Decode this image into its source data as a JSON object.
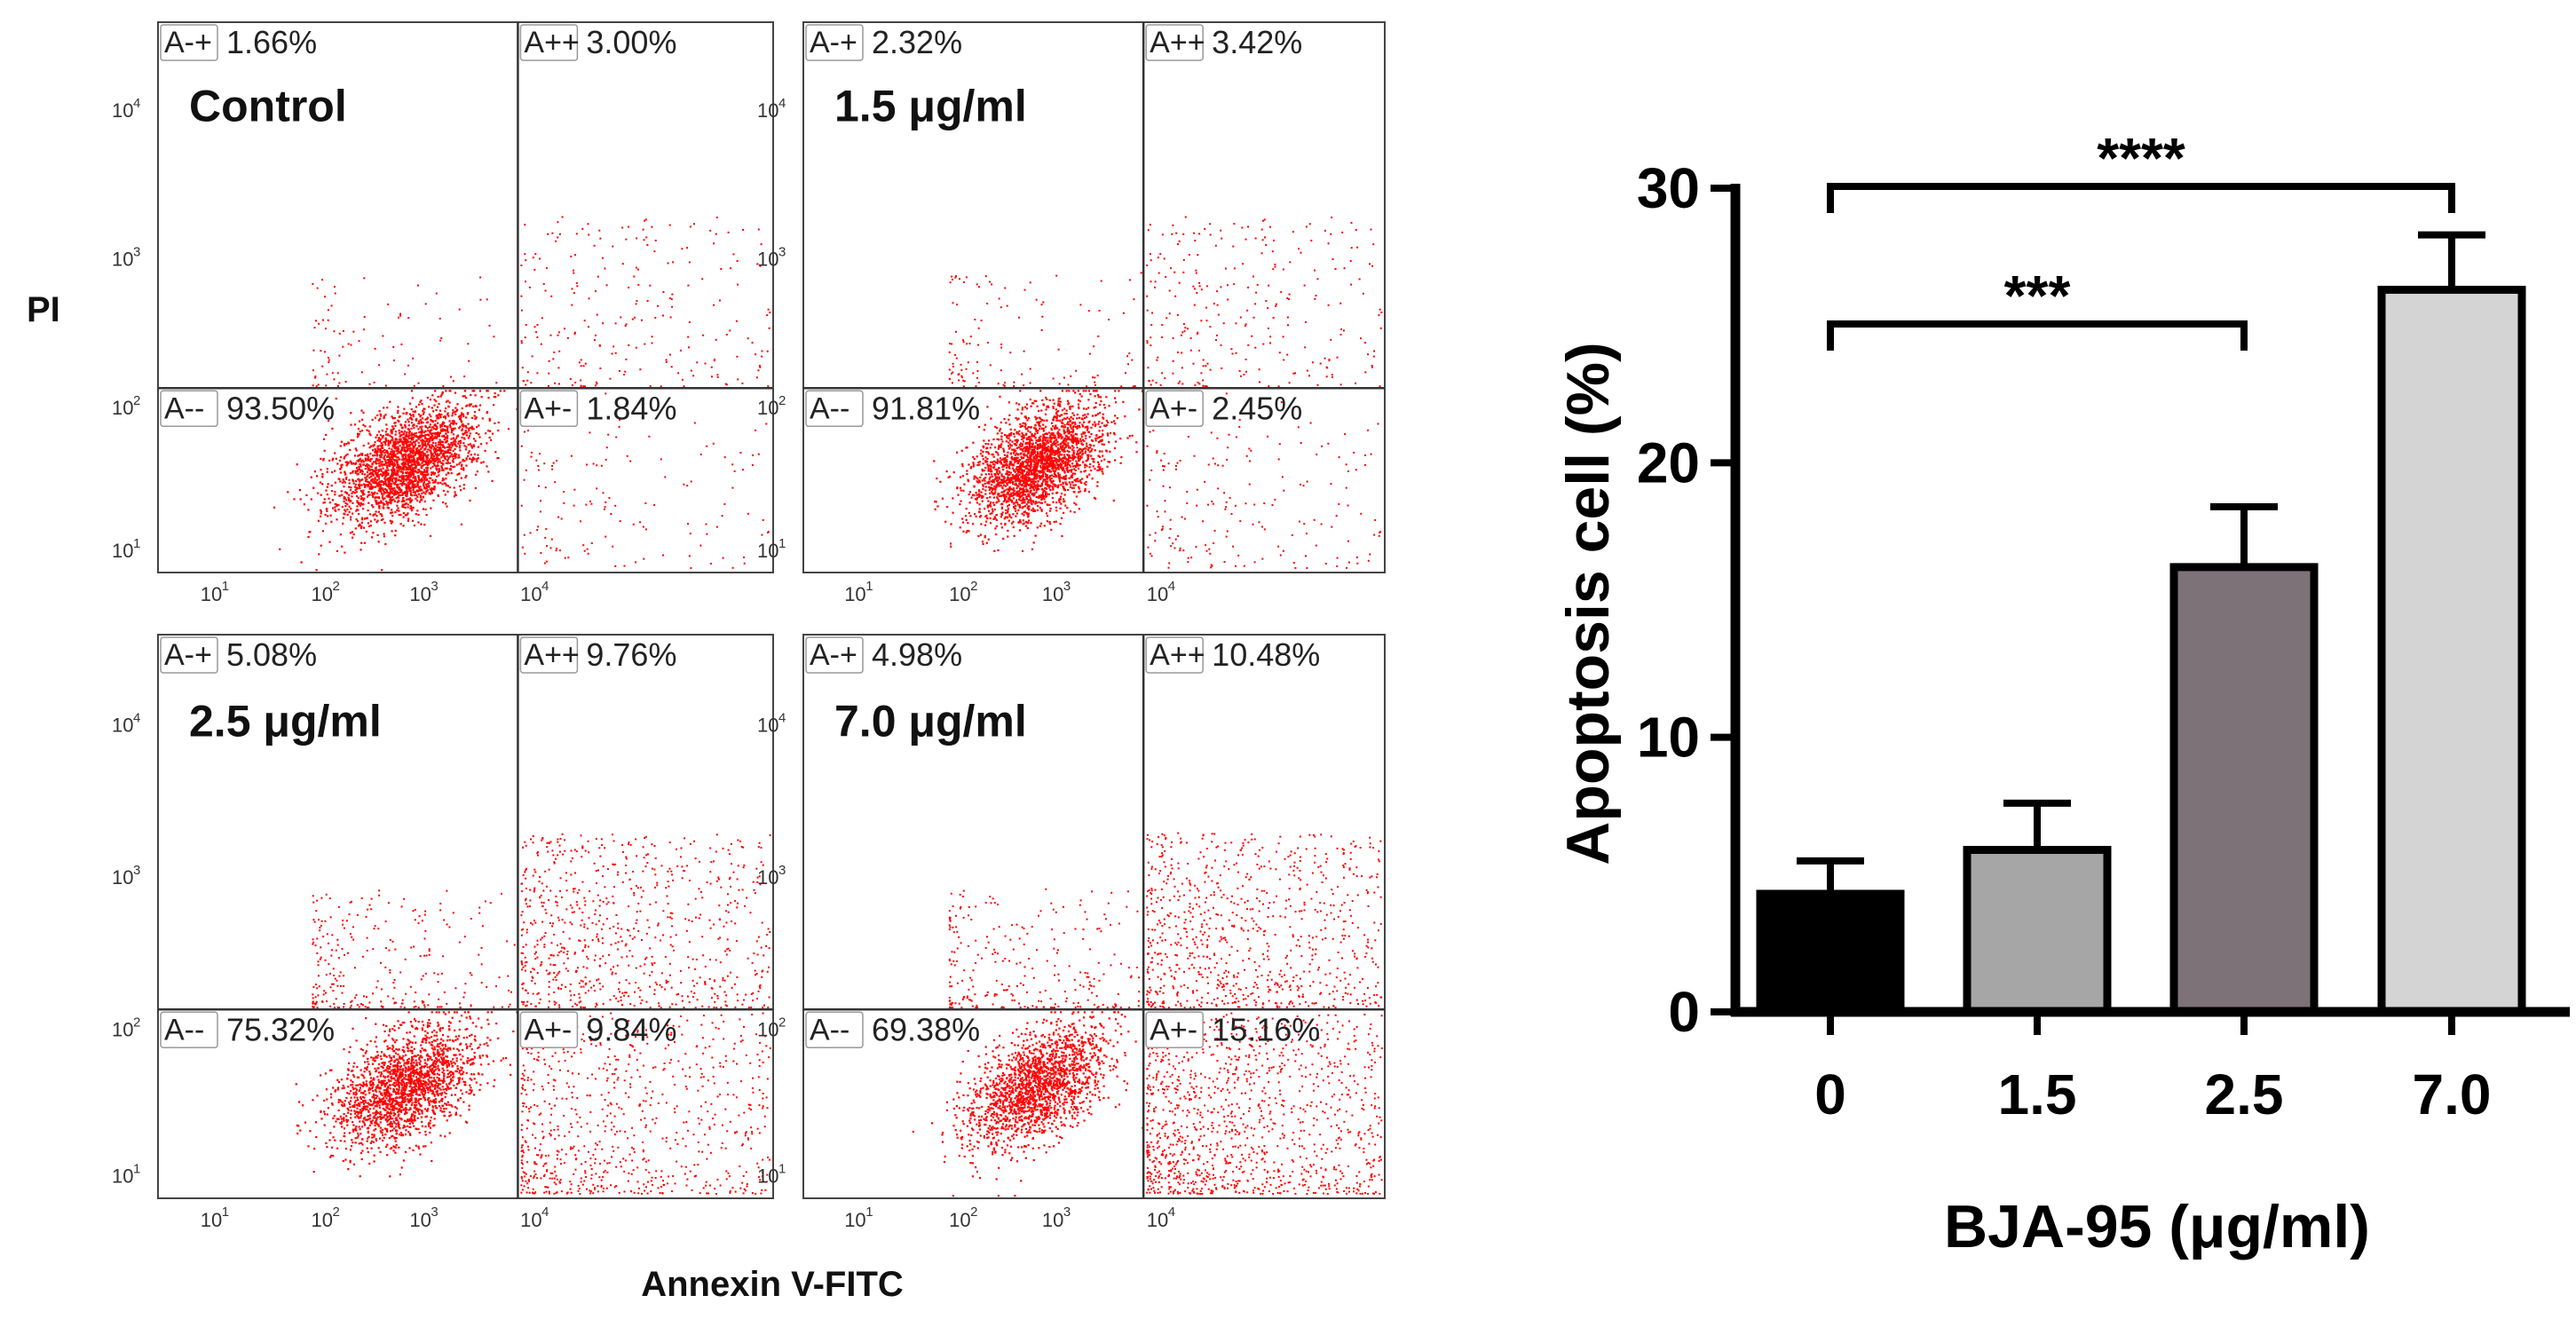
{
  "colors": {
    "dots": "#ff0000",
    "axis": "#000000",
    "bar_fills": [
      "#000000",
      "#a6a6a6",
      "#7d7277",
      "#d4d4d4"
    ]
  },
  "flow": {
    "ylabel": "PI",
    "xlabel": "Annexin V-FITC",
    "tick_base": "10",
    "x_tick_exponents": [
      "1",
      "2",
      "3",
      "4"
    ],
    "y_tick_exponents": [
      "1",
      "2",
      "3",
      "4"
    ],
    "quadrant_labels": {
      "ul": "A-+",
      "ur": "A++",
      "ll": "A--",
      "lr": "A+-"
    }
  },
  "chart_data": [
    {
      "type": "scatter",
      "subtype": "flow-cytometry-quadrant",
      "panels": [
        {
          "condition": "Control",
          "quadrants": {
            "ul": "1.66%",
            "ur": "3.00%",
            "ll": "93.50%",
            "lr": "1.84%"
          }
        },
        {
          "condition": "1.5 μg/ml",
          "quadrants": {
            "ul": "2.32%",
            "ur": "3.42%",
            "ll": "91.81%",
            "lr": "2.45%"
          }
        },
        {
          "condition": "2.5 μg/ml",
          "quadrants": {
            "ul": "5.08%",
            "ur": "9.76%",
            "ll": "75.32%",
            "lr": "9.84%"
          }
        },
        {
          "condition": "7.0 μg/ml",
          "quadrants": {
            "ul": "4.98%",
            "ur": "10.48%",
            "ll": "69.38%",
            "lr": "15.16%"
          }
        }
      ],
      "xlabel": "Annexin V-FITC",
      "ylabel": "PI"
    },
    {
      "type": "bar",
      "categories": [
        "0",
        "1.5",
        "2.5",
        "7.0"
      ],
      "values": [
        4.3,
        5.9,
        16.2,
        26.3
      ],
      "errors": [
        1.2,
        1.7,
        2.2,
        2.0
      ],
      "xlabel": "BJA-95 (μg/ml)",
      "ylabel": "Apoptosis cell (%)",
      "ylim": [
        0,
        30
      ],
      "yticks": [
        "0",
        "10",
        "20",
        "30"
      ],
      "significance": [
        {
          "from": "0",
          "to": "2.5",
          "label": "***"
        },
        {
          "from": "0",
          "to": "7.0",
          "label": "****"
        }
      ]
    }
  ]
}
